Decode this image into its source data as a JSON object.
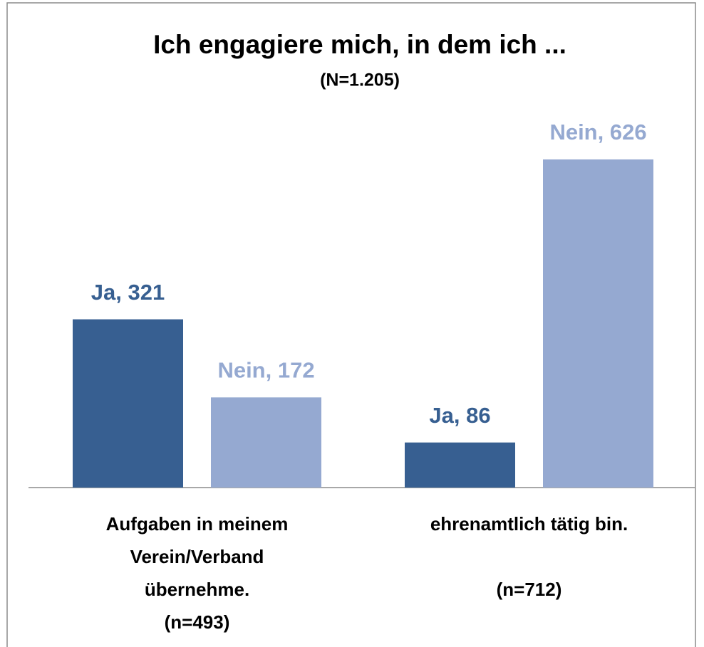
{
  "chart_data": {
    "type": "bar",
    "title": "Ich engagiere mich, in dem ich ...",
    "subtitle": "(N=1.205)",
    "categories": [
      [
        "Aufgaben in meinem",
        "Verein/Verband",
        "übernehme.",
        "(n=493)"
      ],
      [
        "ehrenamtlich tätig bin.",
        "(n=712)"
      ]
    ],
    "series": [
      {
        "name": "Ja",
        "color": "#375f91",
        "values": [
          321,
          86
        ],
        "value_labels": [
          "Ja, 321",
          "Ja, 86"
        ]
      },
      {
        "name": "Nein",
        "color": "#95a9d1",
        "values": [
          172,
          626
        ],
        "value_labels": [
          "Nein, 172",
          "Nein, 626"
        ]
      }
    ]
  }
}
